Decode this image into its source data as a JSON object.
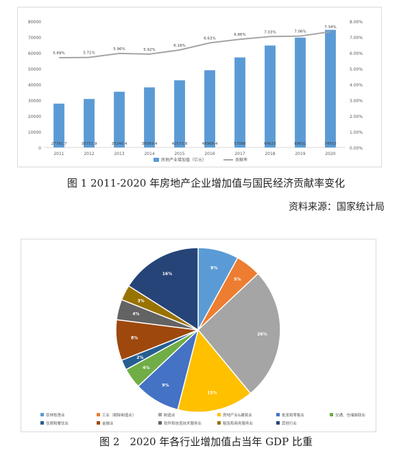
{
  "chart_data": [
    {
      "type": "bar",
      "categories": [
        "2011",
        "2012",
        "2013",
        "2014",
        "2015",
        "2016",
        "2017",
        "2018",
        "2019",
        "2020"
      ],
      "series": [
        {
          "name": "房地产业增加值（亿元）",
          "type": "bar",
          "axis": "left",
          "values": [
            27781.7,
            30751.9,
            35340.4,
            38089.4,
            42573.8,
            48968.4,
            57086,
            64623,
            69631,
            74553
          ],
          "labels": [
            "27781.7",
            "30751.9",
            "35340.4",
            "38089.4",
            "42573.8",
            "48968.4",
            "57086",
            "64623",
            "69631",
            "74553"
          ],
          "color": "#5b9bd5"
        },
        {
          "name": "贡献率",
          "type": "line",
          "axis": "right",
          "values": [
            5.69,
            5.71,
            5.96,
            5.92,
            6.18,
            6.63,
            6.86,
            7.03,
            7.06,
            7.34
          ],
          "labels": [
            "5.69%",
            "5.71%",
            "5.96%",
            "5.92%",
            "6.18%",
            "6.63%",
            "6.86%",
            "7.03%",
            "7.06%",
            "7.34%"
          ],
          "color": "#a5a5a5"
        }
      ],
      "ylim": [
        0,
        80000
      ],
      "yticks": [
        "0",
        "10000",
        "20000",
        "30000",
        "40000",
        "50000",
        "60000",
        "70000",
        "80000"
      ],
      "y2lim": [
        0,
        8
      ],
      "y2ticks": [
        "0.00%",
        "1.00%",
        "2.00%",
        "3.00%",
        "4.00%",
        "5.00%",
        "6.00%",
        "7.00%",
        "8.00%"
      ],
      "legend_position": "bottom",
      "grid": false
    },
    {
      "type": "pie",
      "slices": [
        {
          "name": "农林牧渔业",
          "value": 8,
          "label": "8%",
          "color": "#5b9bd5"
        },
        {
          "name": "工业（剔除制造业）",
          "value": 5,
          "label": "5%",
          "color": "#ed7d31"
        },
        {
          "name": "制造业",
          "value": 26,
          "label": "26%",
          "color": "#a5a5a5"
        },
        {
          "name": "房地产业&建筑业",
          "value": 15,
          "label": "15%",
          "color": "#ffc000"
        },
        {
          "name": "批发和零售业",
          "value": 9,
          "label": "9%",
          "color": "#4472c4"
        },
        {
          "name": "交通、仓储邮政业",
          "value": 4,
          "label": "4%",
          "color": "#70ad47"
        },
        {
          "name": "住宿和餐饮业",
          "value": 2,
          "label": "2%",
          "color": "#255e91"
        },
        {
          "name": "金融业",
          "value": 8,
          "label": "8%",
          "color": "#9e480e"
        },
        {
          "name": "软件和信息技术服务业",
          "value": 4,
          "label": "4%",
          "color": "#636363"
        },
        {
          "name": "租赁和商务服务业",
          "value": 3,
          "label": "3%",
          "color": "#997300"
        },
        {
          "name": "其他行业",
          "value": 16,
          "label": "16%",
          "color": "#264478"
        }
      ],
      "legend_position": "bottom"
    }
  ],
  "captions": {
    "fig1": "图 1 2011-2020 年房地产企业增加值与国民经济贡献率变化",
    "source": "资料来源：国家统计局",
    "fig2": "图 2　2020 年各行业增加值占当年 GDP 比重"
  }
}
